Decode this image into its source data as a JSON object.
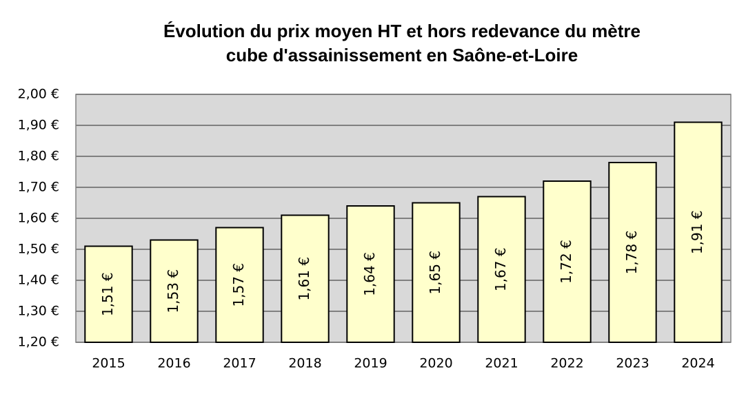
{
  "chart_data": {
    "type": "bar",
    "title": [
      "Évolution du prix moyen HT et hors redevance du mètre",
      "cube d'assainissement en Saône-et-Loire"
    ],
    "categories": [
      "2015",
      "2016",
      "2017",
      "2018",
      "2019",
      "2020",
      "2021",
      "2022",
      "2023",
      "2024"
    ],
    "values": [
      1.51,
      1.53,
      1.57,
      1.61,
      1.64,
      1.65,
      1.67,
      1.72,
      1.78,
      1.91
    ],
    "value_labels": [
      "1,51 €",
      "1,53 €",
      "1,57 €",
      "1,61 €",
      "1,64 €",
      "1,65 €",
      "1,67 €",
      "1,72 €",
      "1,78 €",
      "1,91 €"
    ],
    "color": "#ffffcc",
    "ylim": [
      1.2,
      2.0
    ],
    "yticks": [
      {
        "value": 1.2,
        "label": "1,20 €"
      },
      {
        "value": 1.3,
        "label": "1,30 €"
      },
      {
        "value": 1.4,
        "label": "1,40 €"
      },
      {
        "value": 1.5,
        "label": "1,50 €"
      },
      {
        "value": 1.6,
        "label": "1,60 €"
      },
      {
        "value": 1.7,
        "label": "1,70 €"
      },
      {
        "value": 1.8,
        "label": "1,80 €"
      },
      {
        "value": 1.9,
        "label": "1,90 €"
      },
      {
        "value": 2.0,
        "label": "2,00 €"
      }
    ],
    "grid": true
  }
}
